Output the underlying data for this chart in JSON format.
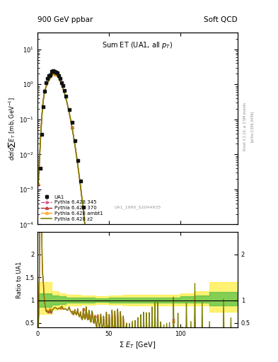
{
  "title_left": "900 GeV ppbar",
  "title_right": "Soft QCD",
  "plot_title": "Sum ET (UA1, all p_{T})",
  "xlabel": "Σ E_{T} [GeV]",
  "ylabel_main": "dσ/dsum E_{T} [mb,GeV⁻¹]",
  "ylabel_ratio": "Ratio to UA1",
  "right_label_top": "Rivet 3.1.10, ≥ 3.5M events",
  "right_label_bot": "[arXiv:1306.3436]",
  "watermark": "UA1_1990_S2044935",
  "colors": {
    "UA1": "#111111",
    "345": "#cc3377",
    "370": "#aa1122",
    "ambt1": "#ff9900",
    "z2": "#808000"
  },
  "xlim": [
    0,
    140
  ],
  "ylim_main_log": [
    -4,
    1.5
  ],
  "ylim_ratio": [
    0.4,
    2.5
  ]
}
